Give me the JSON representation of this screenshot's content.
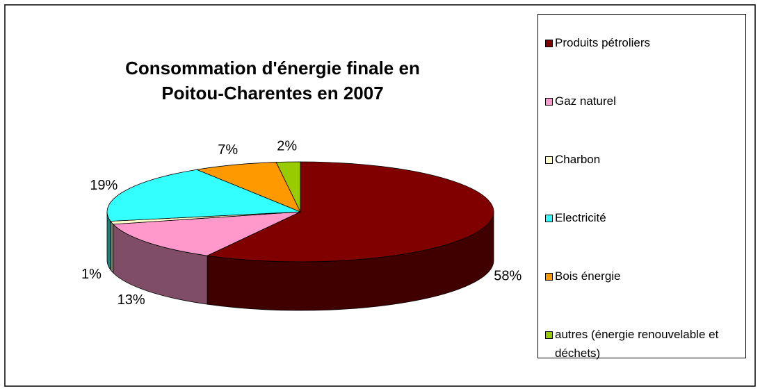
{
  "chart_data": {
    "type": "pie3d",
    "title": "Consommation d'énergie finale en Poitou-Charentes en 2007",
    "categories": [
      "Produits pétroliers",
      "Gaz naturel",
      "Charbon",
      "Electricité",
      "Bois énergie",
      "autres (énergie renouvelable et déchets)"
    ],
    "values": [
      58,
      13,
      1,
      19,
      7,
      2
    ],
    "value_labels": [
      "58%",
      "13%",
      "1%",
      "19%",
      "7%",
      "2%"
    ],
    "colors": [
      "#800000",
      "#ff99cc",
      "#ffffcc",
      "#33ffff",
      "#ff9900",
      "#99cc00"
    ],
    "legend": "right"
  }
}
